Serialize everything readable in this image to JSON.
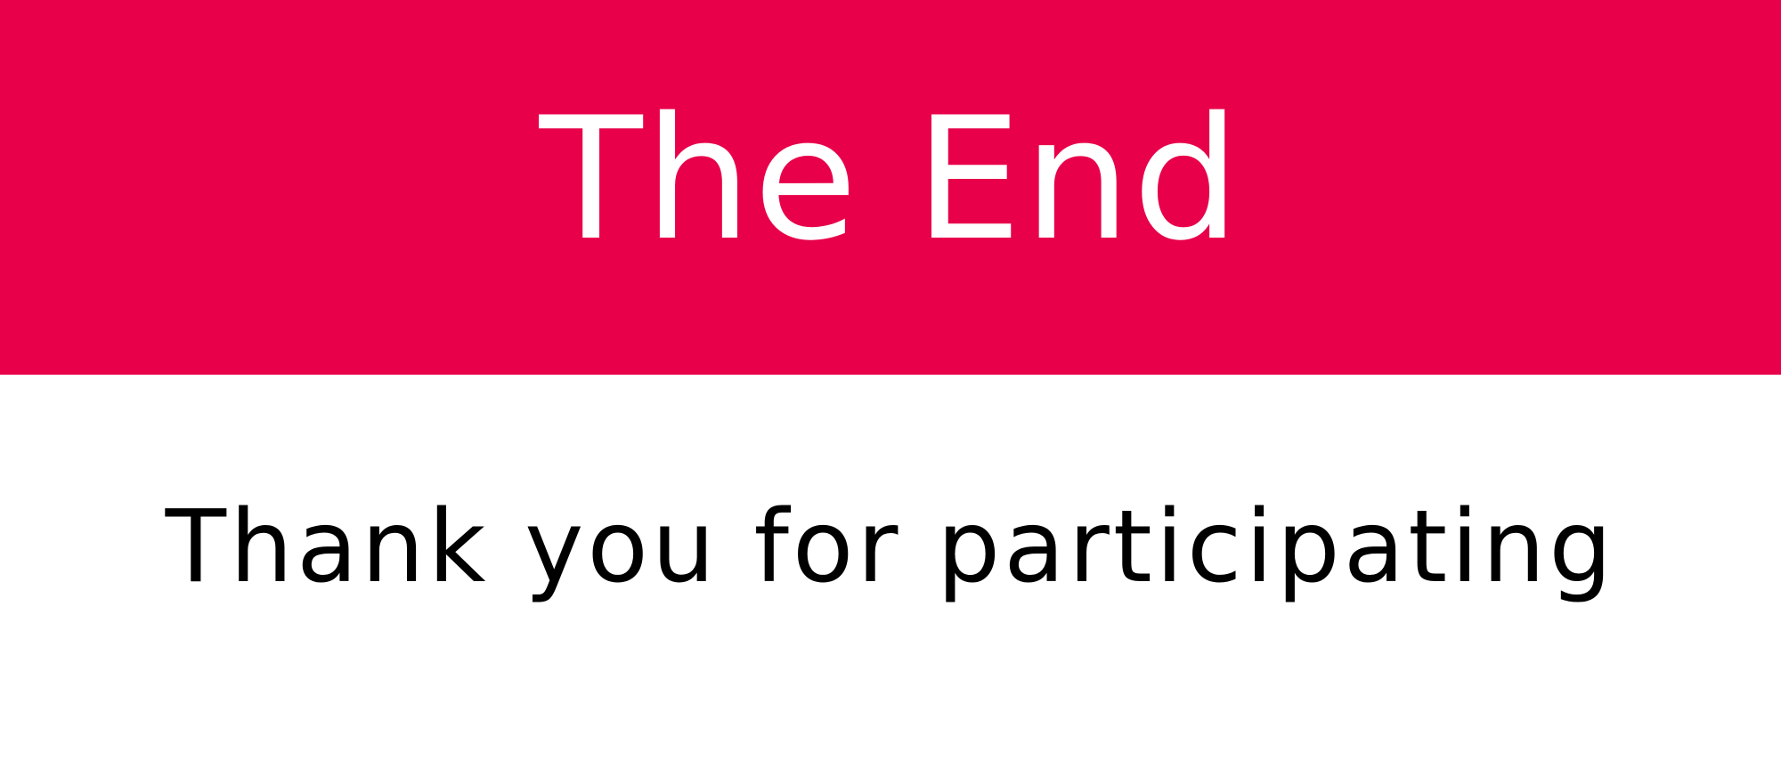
{
  "banner": {
    "title": "The End",
    "background_color": "#e8004a",
    "text_color": "#ffffff"
  },
  "message": {
    "text": "Thank you for participating",
    "text_color": "#000000"
  }
}
